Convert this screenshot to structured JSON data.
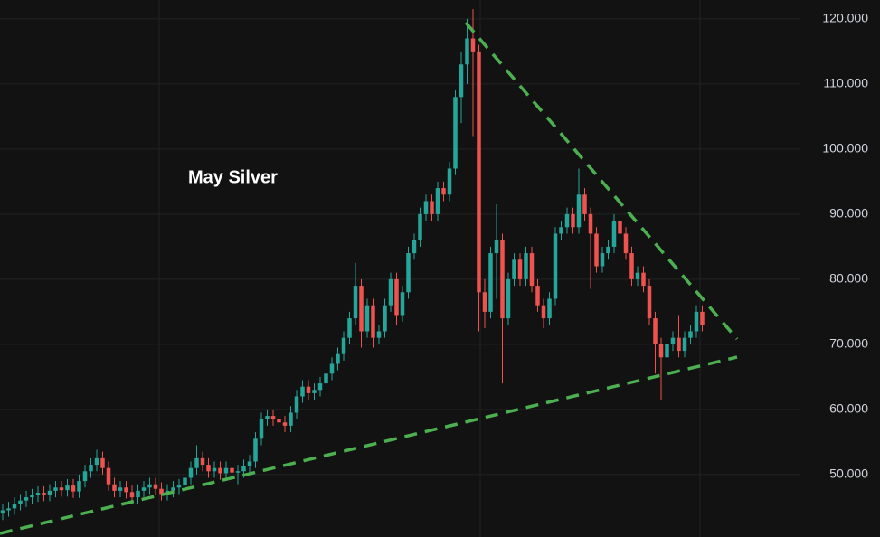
{
  "chart_data": {
    "type": "candlestick",
    "annotation": "May Silver",
    "up_color": "#26a69a",
    "down_color": "#ef5350",
    "grid": true,
    "ylim": [
      40.4,
      122.9
    ],
    "yticks": [
      {
        "value": 50,
        "label": "50.000"
      },
      {
        "value": 60,
        "label": "60.000"
      },
      {
        "value": 70,
        "label": "70.000"
      },
      {
        "value": 80,
        "label": "80.000"
      },
      {
        "value": 90,
        "label": "90.000"
      },
      {
        "value": 100,
        "label": "100.000"
      },
      {
        "value": 110,
        "label": "110.000"
      },
      {
        "value": 120,
        "label": "120.000"
      }
    ],
    "open": [
      44,
      44.5,
      44.8,
      45.5,
      46,
      46.5,
      46.8,
      47.2,
      46.9,
      47.5,
      48,
      47.6,
      48.3,
      47.4,
      49,
      50.5,
      51.5,
      52.5,
      51,
      48.5,
      47.5,
      48,
      47.3,
      46.5,
      47.5,
      48,
      48.5,
      47.8,
      47,
      47.5,
      48,
      48.3,
      49.5,
      51,
      52.5,
      51.5,
      50.5,
      51,
      50.2,
      51,
      50.3,
      50.5,
      51.3,
      52,
      55.5,
      58.5,
      59,
      58.5,
      58,
      57.5,
      59.5,
      62,
      63.5,
      62.5,
      63,
      64,
      65.5,
      67,
      68.5,
      71,
      74,
      79,
      72,
      76,
      71,
      72,
      76,
      80,
      74.5,
      78,
      84,
      86,
      90,
      92,
      90,
      94,
      93,
      97,
      108,
      113,
      117,
      115,
      78,
      75,
      84,
      86,
      74,
      80,
      83,
      80,
      84,
      79,
      76,
      74,
      77,
      87,
      88,
      90,
      88,
      93,
      90,
      87,
      82,
      84,
      85,
      89,
      87,
      84,
      80,
      81,
      79,
      74,
      70,
      68,
      70,
      71,
      69,
      71,
      72,
      75
    ],
    "high": [
      45.5,
      45.8,
      46.5,
      47,
      47.5,
      47.8,
      48.2,
      48.2,
      48.5,
      49,
      49,
      49.3,
      49.3,
      50,
      51.5,
      52.5,
      53.8,
      53.5,
      52,
      49.5,
      49,
      49,
      48.3,
      48.5,
      49,
      49.5,
      49.5,
      48.8,
      48.5,
      49,
      49.3,
      50.5,
      52,
      54.5,
      53.5,
      52.5,
      52,
      52,
      52,
      52,
      51.5,
      52.3,
      53,
      56.5,
      59.5,
      60,
      60,
      59.5,
      59,
      60.5,
      63,
      64.5,
      64.5,
      64,
      65,
      66.5,
      68,
      69.5,
      72,
      75,
      82.5,
      80,
      77,
      77,
      73,
      77,
      81,
      81,
      79,
      85,
      87,
      91,
      93,
      93,
      95,
      95,
      98,
      109,
      115,
      120,
      121.5,
      116,
      80,
      85,
      91.5,
      87,
      81,
      84,
      84,
      85,
      85,
      80,
      77,
      78,
      88,
      89,
      91,
      91,
      97,
      94,
      91,
      88,
      85,
      86,
      90,
      90,
      88,
      85,
      82,
      82,
      80,
      75,
      71,
      71,
      72,
      74.5,
      72,
      73,
      76,
      76
    ],
    "low": [
      43,
      43.5,
      43.8,
      44.5,
      45,
      45.5,
      45.8,
      45.9,
      45.9,
      46.5,
      46.6,
      46.6,
      46.4,
      46.4,
      48,
      49.5,
      50.5,
      50,
      47.5,
      46.5,
      46.5,
      46.3,
      45.5,
      45.5,
      46.5,
      47,
      46.8,
      46,
      46,
      46.5,
      47,
      47.3,
      48.5,
      50,
      50.5,
      49.5,
      49.5,
      49.2,
      49.2,
      49.3,
      48.5,
      49.5,
      50.3,
      51,
      54.5,
      57.5,
      57.5,
      57,
      56.5,
      56.5,
      58.5,
      61,
      61.5,
      61.5,
      62,
      63,
      64.5,
      66,
      67.5,
      70,
      73,
      69.5,
      71,
      69.5,
      70,
      71,
      75,
      73,
      73.5,
      77,
      83,
      85,
      89,
      89,
      89,
      92,
      92,
      96,
      104,
      110,
      102,
      72,
      72.5,
      74,
      77,
      64,
      73,
      79,
      79,
      79,
      78,
      75,
      72.5,
      73,
      76,
      86,
      87,
      87,
      87,
      89,
      78.5,
      81,
      81,
      83,
      84,
      86,
      83,
      79,
      79,
      78,
      73,
      65.5,
      61.5,
      67,
      69,
      68,
      68,
      70,
      71,
      72
    ],
    "close": [
      44.5,
      44.8,
      45.5,
      46,
      46.5,
      46.8,
      47.2,
      46.9,
      47.5,
      48,
      47.6,
      48.3,
      47.4,
      49,
      50.5,
      51.5,
      52.5,
      51,
      48.5,
      47.5,
      48,
      47.3,
      46.5,
      47.5,
      48,
      48.5,
      47.8,
      47,
      47.5,
      48,
      48.3,
      49.5,
      51,
      52.5,
      51.5,
      50.5,
      51,
      50.2,
      51,
      50.3,
      50.5,
      51.3,
      52,
      55.5,
      58.5,
      59,
      58.5,
      58,
      57.5,
      59.5,
      62,
      63.5,
      62.5,
      63,
      64,
      65.5,
      67,
      68.5,
      71,
      74,
      79,
      72,
      76,
      71,
      72,
      76,
      80,
      74.5,
      78,
      84,
      86,
      90,
      92,
      90,
      94,
      93,
      97,
      108,
      113,
      117,
      115,
      78,
      75,
      84,
      86,
      74,
      80,
      83,
      80,
      84,
      79,
      76,
      74,
      77,
      87,
      88,
      90,
      88,
      93,
      90,
      87,
      82,
      84,
      85,
      89,
      87,
      84,
      80,
      81,
      79,
      74,
      70,
      68,
      70,
      71,
      69,
      71,
      72,
      75,
      73
    ]
  }
}
